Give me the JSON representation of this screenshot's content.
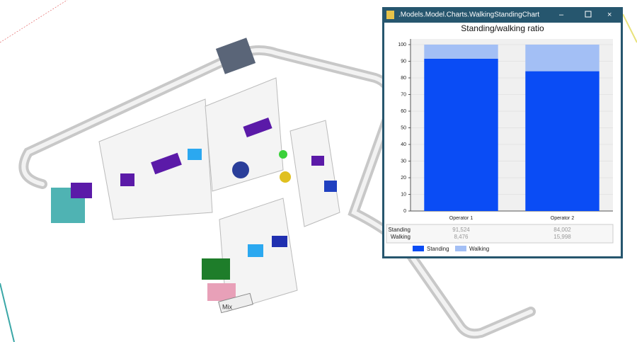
{
  "window": {
    "title": ".Models.Model.Charts.WalkingStandingChart"
  },
  "scene": {
    "label": "Mix"
  },
  "chart_data": {
    "type": "bar",
    "stacked": true,
    "title": "Standing/walking ratio",
    "categories": [
      "Operator 1",
      "Operator 2"
    ],
    "series": [
      {
        "name": "Standing",
        "color": "#0a4cf5",
        "values": [
          91.524,
          84.002
        ],
        "value_labels": [
          "91,524",
          "84,002"
        ]
      },
      {
        "name": "Walking",
        "color": "#a3bff5",
        "values": [
          8.476,
          15.998
        ],
        "value_labels": [
          "8,476",
          "15,998"
        ]
      }
    ],
    "ylim": [
      0,
      100
    ],
    "yticks": [
      0,
      10,
      20,
      30,
      40,
      50,
      60,
      70,
      80,
      90,
      100
    ],
    "grid": true,
    "legend": "bottom"
  }
}
